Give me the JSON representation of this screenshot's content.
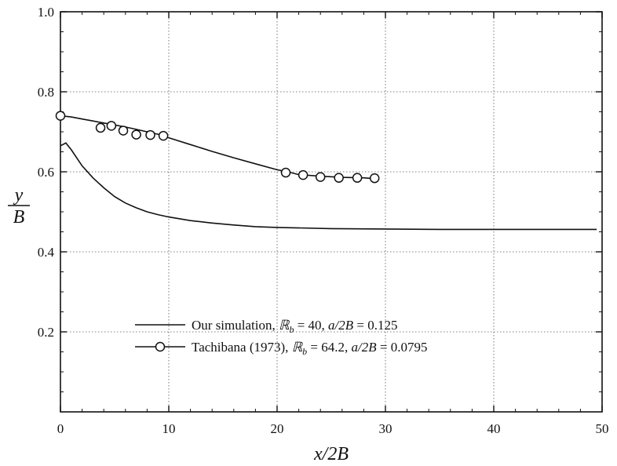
{
  "chart_data": {
    "type": "line",
    "xlabel": "x/2B",
    "ylabel_num": "y",
    "ylabel_den": "B",
    "xlim": [
      0,
      50
    ],
    "ylim": [
      0,
      1.0
    ],
    "xticks": [
      0,
      10,
      20,
      30,
      40,
      50
    ],
    "yticks": [
      0.2,
      0.4,
      0.6,
      0.8,
      1.0
    ],
    "xtick_labels": [
      "0",
      "10",
      "20",
      "30",
      "40",
      "50"
    ],
    "ytick_labels": [
      "0.2",
      "0.4",
      "0.6",
      "0.8",
      "1.0"
    ],
    "grid": true,
    "legend_position": "lower-center",
    "series": [
      {
        "legend": {
          "prefix": "Our simulation, ",
          "R": "ℝ",
          "sub": "b",
          "mid": " = 40, ",
          "a": "a/2B",
          "val": " = 0.125"
        },
        "x": [
          0.0,
          0.5,
          1,
          2,
          3,
          4,
          5,
          6,
          7,
          8,
          9,
          10,
          12,
          14,
          16,
          18,
          20,
          25,
          30,
          35,
          40,
          45,
          49.5
        ],
        "y": [
          0.665,
          0.672,
          0.655,
          0.615,
          0.585,
          0.56,
          0.538,
          0.522,
          0.51,
          0.5,
          0.493,
          0.487,
          0.478,
          0.472,
          0.467,
          0.463,
          0.461,
          0.458,
          0.457,
          0.456,
          0.456,
          0.456,
          0.456
        ]
      },
      {
        "legend": {
          "prefix": "Tachibana (1973), ",
          "R": "ℝ",
          "sub": "b",
          "mid": " = 64.2, ",
          "a": "a/2B",
          "val": " = 0.0795"
        },
        "x": [
          0.0,
          1,
          2,
          3,
          4,
          5,
          6,
          7,
          8,
          9,
          10,
          12,
          14,
          16,
          18,
          20,
          21,
          22,
          24,
          26,
          28,
          29
        ],
        "y": [
          0.74,
          0.737,
          0.732,
          0.727,
          0.722,
          0.717,
          0.712,
          0.706,
          0.7,
          0.694,
          0.685,
          0.668,
          0.651,
          0.635,
          0.62,
          0.605,
          0.6,
          0.593,
          0.589,
          0.586,
          0.585,
          0.583
        ],
        "marker_x": [
          0.0,
          3.7,
          4.7,
          5.8,
          7.0,
          8.3,
          9.5,
          20.8,
          22.4,
          24.0,
          25.7,
          27.4,
          29.0
        ],
        "marker_y": [
          0.74,
          0.71,
          0.715,
          0.703,
          0.693,
          0.692,
          0.69,
          0.598,
          0.592,
          0.587,
          0.585,
          0.585,
          0.584
        ]
      }
    ]
  }
}
